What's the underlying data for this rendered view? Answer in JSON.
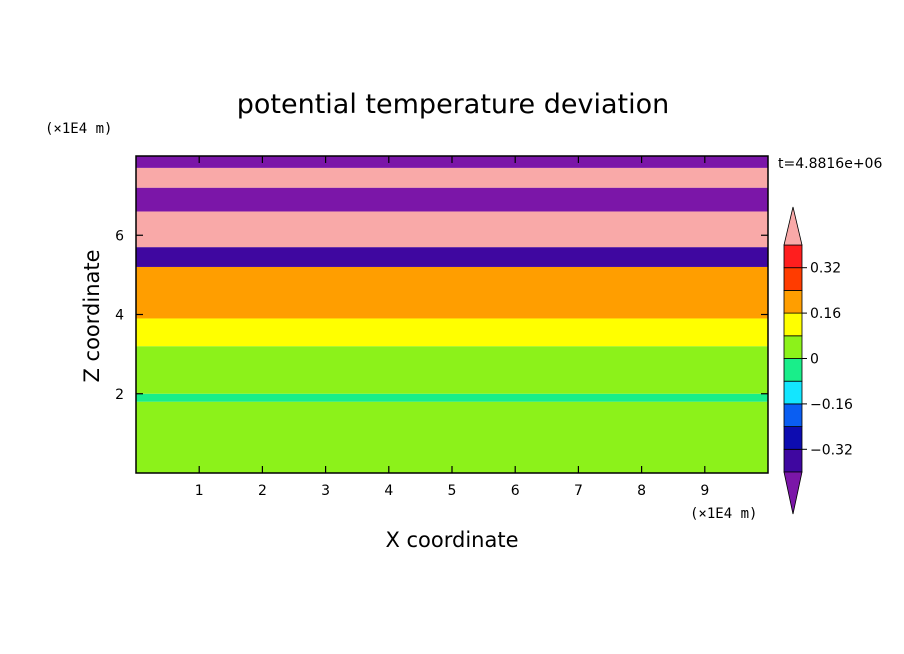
{
  "chart_data": {
    "type": "heatmap",
    "title": "potential temperature deviation",
    "xlabel": "X coordinate",
    "ylabel": "Z coordinate",
    "x_units": "(×1E4 m)",
    "y_units": "(×1E4 m)",
    "time_label": "t=4.8816e+06",
    "xlim": [
      0,
      10
    ],
    "ylim": [
      0,
      8
    ],
    "x_ticks": [
      "1",
      "2",
      "3",
      "4",
      "5",
      "6",
      "7",
      "8",
      "9"
    ],
    "y_ticks": [
      "2",
      "4",
      "6"
    ],
    "colorbar": {
      "levels": [
        -0.4,
        -0.32,
        -0.24,
        -0.16,
        -0.08,
        0,
        0.08,
        0.16,
        0.24,
        0.32,
        0.4
      ],
      "tick_labels": [
        "0.32",
        "0.16",
        "0",
        "−0.16",
        "−0.32"
      ],
      "colors": [
        "#7b16a8",
        "#3f07a0",
        "#0d0cb0",
        "#0a5ef2",
        "#13e6ff",
        "#19ee8a",
        "#8cf21a",
        "#ffff00",
        "#ff9e00",
        "#ff3c00",
        "#ff1e1e",
        "#f9a9a8"
      ]
    },
    "z_bands": [
      {
        "z": [
          0.0,
          1.8
        ],
        "value": 0.02
      },
      {
        "z": [
          1.8,
          2.0
        ],
        "value": -0.06
      },
      {
        "z": [
          2.0,
          3.2
        ],
        "value": 0.03
      },
      {
        "z": [
          3.2,
          3.9
        ],
        "value": 0.1
      },
      {
        "z": [
          3.9,
          5.2
        ],
        "value": 0.2
      },
      {
        "z": [
          5.2,
          5.7
        ],
        "value": -0.35
      },
      {
        "z": [
          5.7,
          6.6
        ],
        "value": 0.45
      },
      {
        "z": [
          6.6,
          7.2
        ],
        "value": -0.45
      },
      {
        "z": [
          7.2,
          7.7
        ],
        "value": 0.45
      },
      {
        "z": [
          7.7,
          8.0
        ],
        "value": -0.45
      }
    ]
  }
}
